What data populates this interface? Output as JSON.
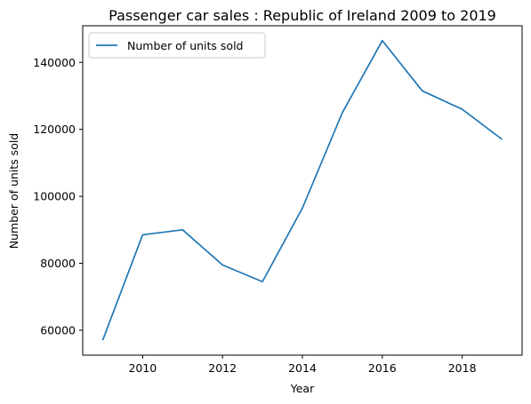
{
  "chart_data": {
    "type": "line",
    "title": "Passenger car sales : Republic of Ireland 2009 to 2019",
    "xlabel": "Year",
    "ylabel": "Number of units sold",
    "x": [
      2009,
      2010,
      2011,
      2012,
      2013,
      2014,
      2015,
      2016,
      2017,
      2018,
      2019
    ],
    "series": [
      {
        "name": "Number of units sold",
        "color": "#1f77b4",
        "values": [
          57000,
          88500,
          90000,
          79500,
          74500,
          96500,
          125000,
          146500,
          131500,
          126000,
          117000
        ]
      }
    ],
    "xlim": [
      2008.5,
      2019.5
    ],
    "ylim": [
      52550,
      150950
    ],
    "xticks": [
      2010,
      2012,
      2014,
      2016,
      2018
    ],
    "yticks": [
      60000,
      80000,
      100000,
      120000,
      140000
    ],
    "grid": false,
    "legend": "top-left"
  }
}
